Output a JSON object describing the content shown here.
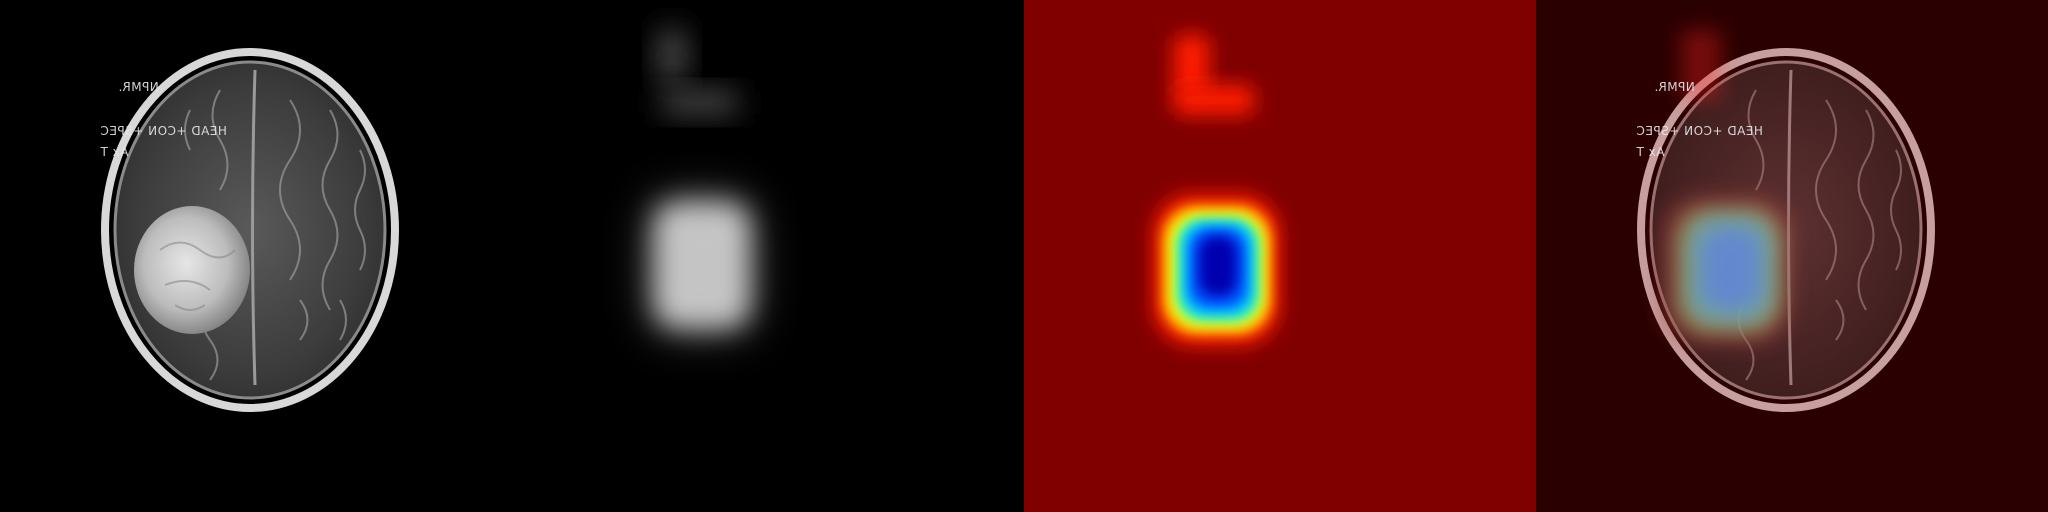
{
  "scan_text": {
    "line1": "NPMR.",
    "line2": "HEAD +CON +SPEC",
    "line3": "Ax T"
  },
  "colors": {
    "background": "#000000",
    "jet_background": "#800000",
    "overlay_tint": "#2b0000"
  },
  "panels": [
    {
      "name": "original-mri"
    },
    {
      "name": "grayscale-activation"
    },
    {
      "name": "jet-heatmap"
    },
    {
      "name": "overlay"
    }
  ]
}
